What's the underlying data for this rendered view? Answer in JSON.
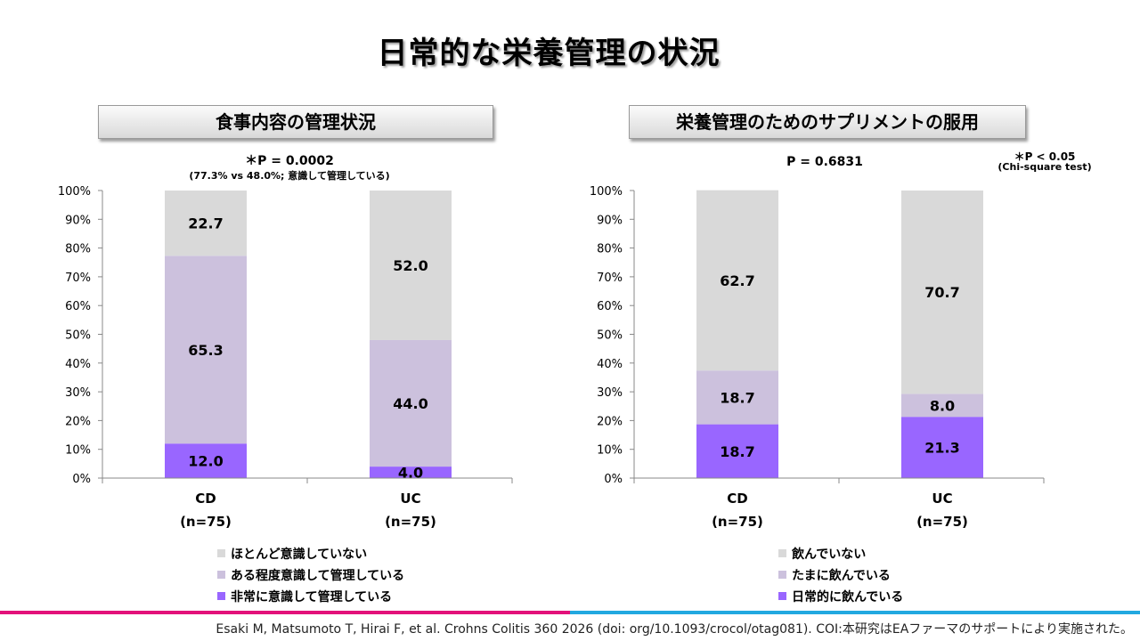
{
  "slide": {
    "title": "日常的な栄養管理の状況",
    "citation": "Esaki M, Matsumoto T, Hirai F, et al. Crohns Colitis 360 2026 (doi: org/10.1093/crocol/otag081). COI:本研究はEAファーマのサポートにより実施された。",
    "rule_colors": [
      "#e3117a",
      "#22a8e0"
    ]
  },
  "left_panel": {
    "header": "食事内容の管理状況",
    "stat_main": "＊P = 0.0002",
    "stat_sub": "(77.3% vs 48.0%; 意識して管理している)"
  },
  "right_panel": {
    "header": "栄養管理のためのサプリメントの服用",
    "stat_main": "P = 0.6831",
    "note_main": "＊P < 0.05",
    "note_sub": "(Chi-square test)"
  },
  "chart_data": [
    {
      "type": "bar",
      "stacked": true,
      "categories": [
        "CD",
        "UC"
      ],
      "category_sublabels": [
        "(n=75)",
        "(n=75)"
      ],
      "ylim": [
        0,
        100
      ],
      "yticks": [
        "0%",
        "10%",
        "20%",
        "30%",
        "40%",
        "50%",
        "60%",
        "70%",
        "80%",
        "90%",
        "100%"
      ],
      "series": [
        {
          "name": "非常に意識して管理している",
          "values": [
            12.0,
            4.0
          ],
          "labels": [
            "12.0",
            "4.0"
          ],
          "color": "#9966ff"
        },
        {
          "name": "ある程度意識して管理している",
          "values": [
            65.3,
            44.0
          ],
          "labels": [
            "65.3",
            "44.0"
          ],
          "color": "#ccc1dd"
        },
        {
          "name": "ほとんど意識していない",
          "values": [
            22.7,
            52.0
          ],
          "labels": [
            "22.7",
            "52.0"
          ],
          "color": "#d9d9d9"
        }
      ],
      "legend_position": "bottom"
    },
    {
      "type": "bar",
      "stacked": true,
      "categories": [
        "CD",
        "UC"
      ],
      "category_sublabels": [
        "(n=75)",
        "(n=75)"
      ],
      "ylim": [
        0,
        100
      ],
      "yticks": [
        "0%",
        "10%",
        "20%",
        "30%",
        "40%",
        "50%",
        "60%",
        "70%",
        "80%",
        "90%",
        "100%"
      ],
      "series": [
        {
          "name": "日常的に飲んでいる",
          "values": [
            18.7,
            21.3
          ],
          "labels": [
            "18.7",
            "21.3"
          ],
          "color": "#9966ff"
        },
        {
          "name": "たまに飲んでいる",
          "values": [
            18.7,
            8.0
          ],
          "labels": [
            "18.7",
            "8.0"
          ],
          "color": "#ccc1dd"
        },
        {
          "name": "飲んでいない",
          "values": [
            62.7,
            70.7
          ],
          "labels": [
            "62.7",
            "70.7"
          ],
          "color": "#d9d9d9"
        }
      ],
      "legend_position": "bottom"
    }
  ]
}
